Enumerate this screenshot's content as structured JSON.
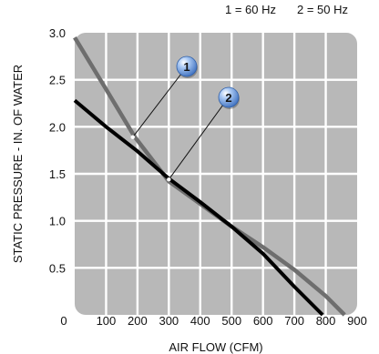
{
  "chart_data": {
    "type": "line",
    "title": "",
    "xlabel": "AIR FLOW (CFM)",
    "ylabel": "STATIC PRESSURE - IN. OF WATER",
    "xlim": [
      0,
      900
    ],
    "ylim": [
      0,
      3.0
    ],
    "x_ticks": [
      0,
      100,
      200,
      300,
      400,
      500,
      600,
      700,
      800,
      900
    ],
    "y_ticks": [
      0.5,
      1.0,
      1.5,
      2.0,
      2.5,
      3.0
    ],
    "grid": true,
    "legend": [
      {
        "marker": "1",
        "text": "1 = 60 Hz"
      },
      {
        "marker": "2",
        "text": "2 = 50 Hz"
      }
    ],
    "series": [
      {
        "name": "60 Hz",
        "marker": "1",
        "color": "#6e6e6e",
        "x": [
          0,
          100,
          190,
          300,
          400,
          500,
          600,
          700,
          800,
          860
        ],
        "y": [
          2.95,
          2.4,
          1.9,
          1.42,
          1.18,
          0.94,
          0.72,
          0.48,
          0.2,
          0.0
        ]
      },
      {
        "name": "50 Hz",
        "marker": "2",
        "color": "#000000",
        "x": [
          0,
          100,
          200,
          300,
          400,
          500,
          600,
          700,
          790
        ],
        "y": [
          2.28,
          2.0,
          1.74,
          1.45,
          1.2,
          0.94,
          0.65,
          0.3,
          0.0
        ]
      }
    ],
    "callouts": [
      {
        "label": "1",
        "x": 185,
        "y": 1.89
      },
      {
        "label": "2",
        "x": 300,
        "y": 1.44
      }
    ]
  },
  "colors": {
    "plot_background": "#b8b8b8",
    "grid": "#ffffff",
    "marker_fill": "#5b8fd6"
  }
}
